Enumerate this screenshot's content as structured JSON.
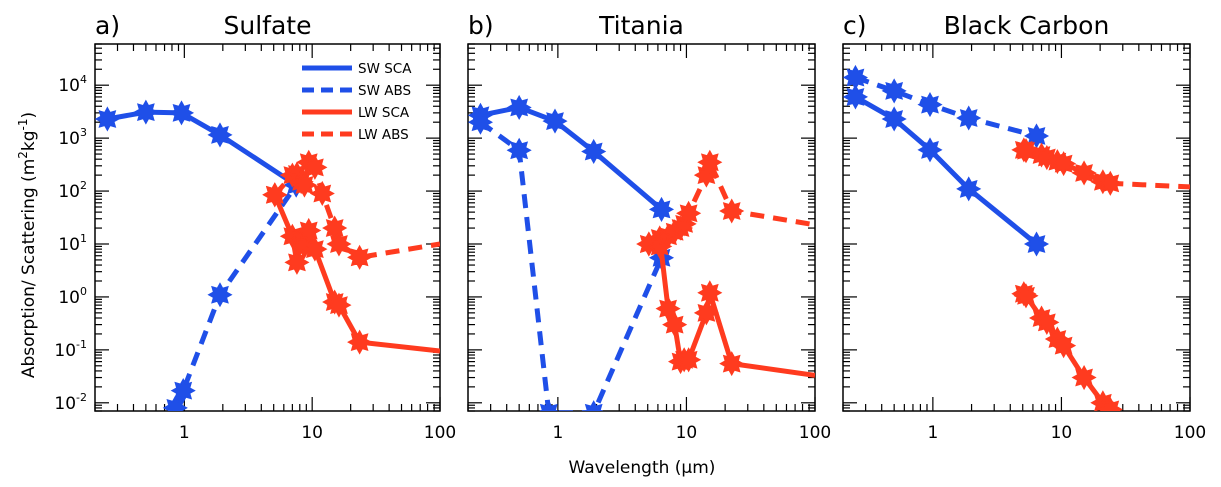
{
  "chart_data": {
    "type": "line",
    "xlabel": "Wavelength (μm)",
    "ylabel": "Absorption/ Scattering (m²kg⁻¹)",
    "xscale": "log",
    "yscale": "log",
    "xlim": [
      0.2,
      100
    ],
    "ylim": [
      0.007,
      60000
    ],
    "x_tick_labels": [
      "1",
      "10",
      "100"
    ],
    "x_tick_values": [
      1,
      10,
      100
    ],
    "y_tick_labels": [
      {
        "base": "10",
        "exp": "-2",
        "value": 0.01
      },
      {
        "base": "10",
        "exp": "-1",
        "value": 0.1
      },
      {
        "base": "10",
        "exp": "0",
        "value": 1
      },
      {
        "base": "10",
        "exp": "1",
        "value": 10
      },
      {
        "base": "10",
        "exp": "2",
        "value": 100
      },
      {
        "base": "10",
        "exp": "3",
        "value": 1000
      },
      {
        "base": "10",
        "exp": "4",
        "value": 10000
      }
    ],
    "legend": {
      "placement": "top-right",
      "entries": [
        {
          "label": "SW SCA",
          "color": "#1f4fe8",
          "dash": "solid"
        },
        {
          "label": "SW ABS",
          "color": "#1f4fe8",
          "dash": "dashed"
        },
        {
          "label": "LW SCA",
          "color": "#ff3b1f",
          "dash": "solid"
        },
        {
          "label": "LW ABS",
          "color": "#ff3b1f",
          "dash": "dashed"
        }
      ]
    },
    "panels": [
      {
        "label": "a)",
        "title": "Sulfate",
        "series": [
          {
            "name": "SW SCA",
            "color": "#1f4fe8",
            "dash": "solid",
            "markers": true,
            "x": [
              0.25,
              0.5,
              0.95,
              1.9,
              7.5
            ],
            "y": [
              2300,
              3100,
              3000,
              1150,
              130
            ]
          },
          {
            "name": "SW ABS",
            "color": "#1f4fe8",
            "dash": "dashed",
            "markers": true,
            "x": [
              0.85,
              0.98,
              1.9,
              7.5
            ],
            "y": [
              0.008,
              0.017,
              1.1,
              130
            ]
          },
          {
            "name": "LW SCA",
            "color": "#ff3b1f",
            "dash": "solid",
            "markers": true,
            "x": [
              5.1,
              7.0,
              7.6,
              8.2,
              8.7,
              9.4,
              10.5,
              15.0,
              16.2,
              23.5,
              100
            ],
            "y": [
              85,
              14,
              4.5,
              12,
              9,
              18,
              8,
              0.8,
              0.7,
              0.14,
              0.095
            ]
          },
          {
            "name": "LW ABS",
            "color": "#ff3b1f",
            "dash": "dashed",
            "markers": true,
            "x": [
              5.1,
              7.0,
              7.6,
              8.2,
              8.7,
              9.4,
              10.5,
              12.0,
              15.0,
              16.2,
              23.5,
              100
            ],
            "y": [
              85,
              200,
              210,
              150,
              130,
              350,
              280,
              90,
              20,
              10,
              5.6,
              10
            ]
          }
        ]
      },
      {
        "label": "b)",
        "title": "Titania",
        "series": [
          {
            "name": "SW SCA",
            "color": "#1f4fe8",
            "dash": "solid",
            "markers": true,
            "x": [
              0.25,
              0.5,
              0.95,
              1.9,
              6.4
            ],
            "y": [
              2700,
              3800,
              2100,
              560,
              45
            ]
          },
          {
            "name": "SW ABS",
            "color": "#1f4fe8",
            "dash": "dashed",
            "markers": true,
            "x": [
              0.25,
              0.5,
              0.85,
              1.9,
              6.4
            ],
            "y": [
              2000,
              590,
              0.0065,
              0.0065,
              5.5
            ]
          },
          {
            "name": "LW SCA",
            "color": "#ff3b1f",
            "dash": "solid",
            "markers": true,
            "x": [
              5.1,
              6.2,
              7.2,
              8.1,
              9.0,
              9.6,
              10.4,
              14.3,
              15.2,
              22.5,
              100
            ],
            "y": [
              10,
              13,
              0.6,
              0.3,
              0.06,
              0.065,
              0.065,
              0.5,
              1.2,
              0.055,
              0.033
            ]
          },
          {
            "name": "LW ABS",
            "color": "#ff3b1f",
            "dash": "dashed",
            "markers": true,
            "x": [
              5.1,
              6.2,
              7.2,
              8.1,
              9.0,
              9.6,
              10.4,
              14.3,
              15.2,
              22.5,
              100
            ],
            "y": [
              10,
              9,
              14,
              17,
              20,
              24,
              38,
              200,
              350,
              42,
              23
            ]
          }
        ]
      },
      {
        "label": "c)",
        "title": "Black Carbon",
        "series": [
          {
            "name": "SW SCA",
            "color": "#1f4fe8",
            "dash": "solid",
            "markers": true,
            "x": [
              0.25,
              0.5,
              0.95,
              1.9,
              6.4
            ],
            "y": [
              6000,
              2300,
              600,
              110,
              10
            ]
          },
          {
            "name": "SW ABS",
            "color": "#1f4fe8",
            "dash": "dashed",
            "markers": true,
            "x": [
              0.25,
              0.5,
              0.95,
              1.9,
              6.4
            ],
            "y": [
              14000,
              7800,
              4300,
              2400,
              1100
            ]
          },
          {
            "name": "LW SCA",
            "color": "#ff3b1f",
            "dash": "solid",
            "markers": true,
            "x": [
              5.1,
              5.3,
              7.0,
              7.7,
              9.3,
              10.4,
              15.0,
              21.0,
              24.0
            ],
            "y": [
              1.15,
              1.05,
              0.4,
              0.33,
              0.16,
              0.12,
              0.03,
              0.01,
              0.0075
            ]
          },
          {
            "name": "LW ABS",
            "color": "#ff3b1f",
            "dash": "dashed",
            "markers": true,
            "x": [
              5.1,
              5.3,
              7.0,
              7.7,
              9.3,
              10.4,
              15.0,
              21.0,
              24.0,
              100
            ],
            "y": [
              600,
              580,
              480,
              430,
              360,
              330,
              220,
              150,
              140,
              120
            ]
          }
        ]
      }
    ]
  }
}
